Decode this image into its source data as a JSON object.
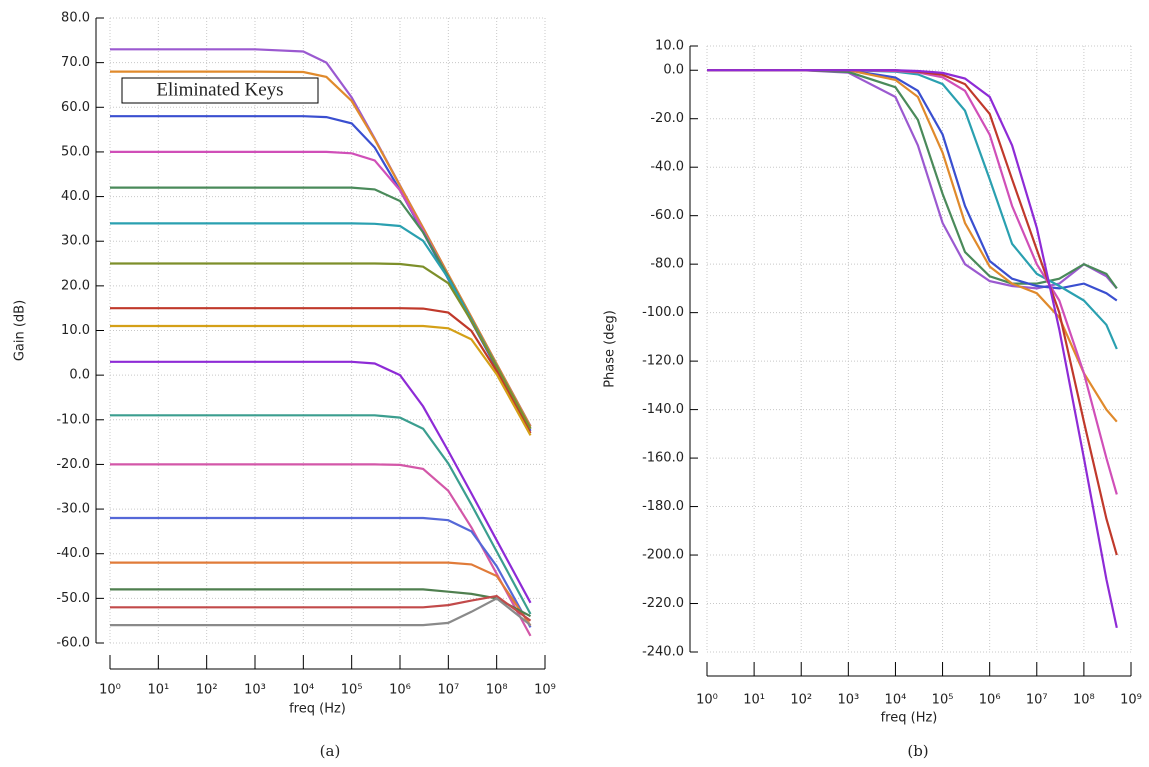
{
  "chart_data": [
    {
      "type": "line",
      "caption": "(a)",
      "x_label": "freq (Hz)",
      "y_label": "Gain (dB)",
      "annotation": "Eliminated Keys",
      "log_x": true,
      "grid": true,
      "xlim": [
        1,
        1000000000
      ],
      "ylim": [
        -60,
        80
      ],
      "xticks": [
        {
          "value": 1,
          "label": "10⁰"
        },
        {
          "value": 10,
          "label": "10¹"
        },
        {
          "value": 100,
          "label": "10²"
        },
        {
          "value": 1000,
          "label": "10³"
        },
        {
          "value": 10000,
          "label": "10⁴"
        },
        {
          "value": 100000,
          "label": "10⁵"
        },
        {
          "value": 1000000,
          "label": "10⁶"
        },
        {
          "value": 10000000,
          "label": "10⁷"
        },
        {
          "value": 100000000,
          "label": "10⁸"
        },
        {
          "value": 1000000000,
          "label": "10⁹"
        }
      ],
      "yticks": [
        {
          "value": 80,
          "label": "80.0"
        },
        {
          "value": 70,
          "label": "70.0"
        },
        {
          "value": 60,
          "label": "60.0"
        },
        {
          "value": 50,
          "label": "50.0"
        },
        {
          "value": 40,
          "label": "40.0"
        },
        {
          "value": 30,
          "label": "30.0"
        },
        {
          "value": 20,
          "label": "20.0"
        },
        {
          "value": 10,
          "label": "10.0"
        },
        {
          "value": 0,
          "label": "0.0"
        },
        {
          "value": -10,
          "label": "-10.0"
        },
        {
          "value": -20,
          "label": "-20.0"
        },
        {
          "value": -30,
          "label": "-30.0"
        },
        {
          "value": -40,
          "label": "-40.0"
        },
        {
          "value": -50,
          "label": "-50.0"
        },
        {
          "value": -60,
          "label": "-60.0"
        }
      ],
      "x": [
        1,
        10,
        100,
        1000,
        10000,
        30000,
        100000,
        300000,
        1000000,
        3000000,
        10000000,
        30000000,
        100000000,
        500000000
      ],
      "series": [
        {
          "color": "#9b59d0",
          "values": [
            73,
            73,
            73,
            73,
            72.5,
            70,
            62.2,
            53,
            42.5,
            33,
            22.5,
            13,
            2.5,
            -11.4
          ]
        },
        {
          "color": "#e08a2c",
          "values": [
            68,
            68,
            68,
            68,
            67.9,
            66.8,
            61.4,
            52.8,
            42.4,
            33,
            22.5,
            13,
            2.5,
            -11.5
          ]
        },
        {
          "color": "#3a4fd0",
          "values": [
            58,
            58,
            58,
            58,
            58,
            57.8,
            56.4,
            51,
            41.4,
            32,
            21.5,
            12,
            1.5,
            -12.5
          ]
        },
        {
          "color": "#d04fb8",
          "values": [
            50,
            50,
            50,
            50,
            50,
            50,
            49.7,
            48.1,
            41.4,
            32.4,
            22,
            12.5,
            2,
            -12
          ]
        },
        {
          "color": "#4a8a5a",
          "values": [
            42,
            42,
            42,
            42,
            42,
            42,
            42,
            41.6,
            39,
            32,
            22,
            12.5,
            2,
            -12
          ]
        },
        {
          "color": "#2aa0b0",
          "values": [
            34,
            34,
            34,
            34,
            34,
            34,
            34,
            33.9,
            33.4,
            30.1,
            21.7,
            12.4,
            2,
            -12
          ]
        },
        {
          "color": "#7d8f2a",
          "values": [
            25,
            25,
            25,
            25,
            25,
            25,
            25,
            25,
            24.9,
            24.3,
            20.6,
            12.1,
            1.9,
            -12
          ]
        },
        {
          "color": "#c0392b",
          "values": [
            15,
            15,
            15,
            15,
            15,
            15,
            15,
            15,
            15,
            14.9,
            14,
            9.9,
            0.9,
            -13
          ]
        },
        {
          "color": "#d4a017",
          "values": [
            11,
            11,
            11,
            11,
            11,
            11,
            11,
            11,
            11,
            11,
            10.5,
            8,
            0.2,
            -13.5
          ]
        },
        {
          "color": "#8e2bd6",
          "values": [
            3,
            3,
            3,
            3,
            3,
            3,
            3,
            2.6,
            0,
            -7,
            -17,
            -26.5,
            -37,
            -51
          ]
        },
        {
          "color": "#3b9e8f",
          "values": [
            -9,
            -9,
            -9,
            -9,
            -9,
            -9,
            -9,
            -9,
            -9.5,
            -12,
            -19.8,
            -29,
            -39.5,
            -53.5
          ]
        },
        {
          "color": "#d357a8",
          "values": [
            -20,
            -20,
            -20,
            -20,
            -20,
            -20,
            -20,
            -20,
            -20.1,
            -21,
            -25.9,
            -34.1,
            -44.5,
            -58.4
          ]
        },
        {
          "color": "#5568d8",
          "values": [
            -32,
            -32,
            -32,
            -32,
            -32,
            -32,
            -32,
            -32,
            -32,
            -32,
            -32.5,
            -35,
            -42.8,
            -56.5
          ]
        },
        {
          "color": "#e07b39",
          "values": [
            -42,
            -42,
            -42,
            -42,
            -42,
            -42,
            -42,
            -42,
            -42,
            -42,
            -42,
            -42.4,
            -45,
            -56.1
          ]
        },
        {
          "color": "#4f7f4f",
          "values": [
            -48,
            -48,
            -48,
            -48,
            -48,
            -48,
            -48,
            -48,
            -48,
            -48,
            -48.5,
            -49,
            -50,
            -54
          ]
        },
        {
          "color": "#c24a4a",
          "values": [
            -52,
            -52,
            -52,
            -52,
            -52,
            -52,
            -52,
            -52,
            -52,
            -52,
            -51.5,
            -50.5,
            -49.5,
            -55
          ]
        },
        {
          "color": "#8a8a8a",
          "values": [
            -56,
            -56,
            -56,
            -56,
            -56,
            -56,
            -56,
            -56,
            -56,
            -56,
            -55.5,
            -53,
            -50,
            -56
          ]
        }
      ]
    },
    {
      "type": "line",
      "caption": "(b)",
      "x_label": "freq (Hz)",
      "y_label": "Phase (deg)",
      "log_x": true,
      "grid": true,
      "xlim": [
        1,
        1000000000
      ],
      "ylim": [
        -240,
        10
      ],
      "xticks": [
        {
          "value": 1,
          "label": "10⁰"
        },
        {
          "value": 10,
          "label": "10¹"
        },
        {
          "value": 100,
          "label": "10²"
        },
        {
          "value": 1000,
          "label": "10³"
        },
        {
          "value": 10000,
          "label": "10⁴"
        },
        {
          "value": 100000,
          "label": "10⁵"
        },
        {
          "value": 1000000,
          "label": "10⁶"
        },
        {
          "value": 10000000,
          "label": "10⁷"
        },
        {
          "value": 100000000,
          "label": "10⁸"
        },
        {
          "value": 1000000000,
          "label": "10⁹"
        }
      ],
      "yticks": [
        {
          "value": 10,
          "label": "10.0"
        },
        {
          "value": 0,
          "label": "0.0"
        },
        {
          "value": -20,
          "label": "-20.0"
        },
        {
          "value": -40,
          "label": "-40.0"
        },
        {
          "value": -60,
          "label": "-60.0"
        },
        {
          "value": -80,
          "label": "-80.0"
        },
        {
          "value": -100,
          "label": "-100.0"
        },
        {
          "value": -120,
          "label": "-120.0"
        },
        {
          "value": -140,
          "label": "-140.0"
        },
        {
          "value": -160,
          "label": "-160.0"
        },
        {
          "value": -180,
          "label": "-180.0"
        },
        {
          "value": -200,
          "label": "-200.0"
        },
        {
          "value": -220,
          "label": "-220.0"
        },
        {
          "value": -240,
          "label": "-240.0"
        }
      ],
      "x": [
        1,
        10,
        100,
        1000,
        10000,
        30000,
        100000,
        300000,
        1000000,
        3000000,
        10000000,
        30000000,
        100000000,
        300000000,
        500000000
      ],
      "series": [
        {
          "color": "#9b59d0",
          "values": [
            0,
            0,
            0,
            -1,
            -11,
            -31,
            -63,
            -80,
            -87,
            -89,
            -90,
            -88,
            -80,
            -85,
            -90
          ]
        },
        {
          "color": "#4a8a5a",
          "values": [
            0,
            0,
            0,
            -0.7,
            -7,
            -20.5,
            -51,
            -75,
            -85,
            -88,
            -88,
            -86,
            -80,
            -84,
            -90
          ]
        },
        {
          "color": "#3a4fd0",
          "values": [
            0,
            0,
            0,
            0,
            -3,
            -8.5,
            -26.5,
            -56,
            -78.7,
            -86,
            -89,
            -90,
            -88,
            -92,
            -95
          ]
        },
        {
          "color": "#e08a2c",
          "values": [
            0,
            0,
            0,
            0,
            -4,
            -11,
            -34,
            -63,
            -81,
            -88,
            -92,
            -102,
            -125,
            -140,
            -145
          ]
        },
        {
          "color": "#2aa0b0",
          "values": [
            0,
            0,
            0,
            0,
            -0.6,
            -1.7,
            -5.7,
            -16.7,
            -45,
            -71.6,
            -84,
            -89,
            -95,
            -105,
            -115
          ]
        },
        {
          "color": "#d04fb8",
          "values": [
            0,
            0,
            0,
            0,
            -0.3,
            -0.9,
            -2.9,
            -8.5,
            -26.6,
            -56,
            -80,
            -95,
            -125,
            -160,
            -175
          ]
        },
        {
          "color": "#c0392b",
          "values": [
            0,
            0,
            0,
            0,
            0,
            -0.6,
            -1.9,
            -5.7,
            -18,
            -45,
            -74,
            -100,
            -145,
            -185,
            -200
          ]
        },
        {
          "color": "#8e2bd6",
          "values": [
            0,
            0,
            0,
            0,
            0,
            -0.3,
            -1.1,
            -3.4,
            -11,
            -31,
            -65,
            -107,
            -160,
            -210,
            -230
          ]
        }
      ]
    }
  ]
}
